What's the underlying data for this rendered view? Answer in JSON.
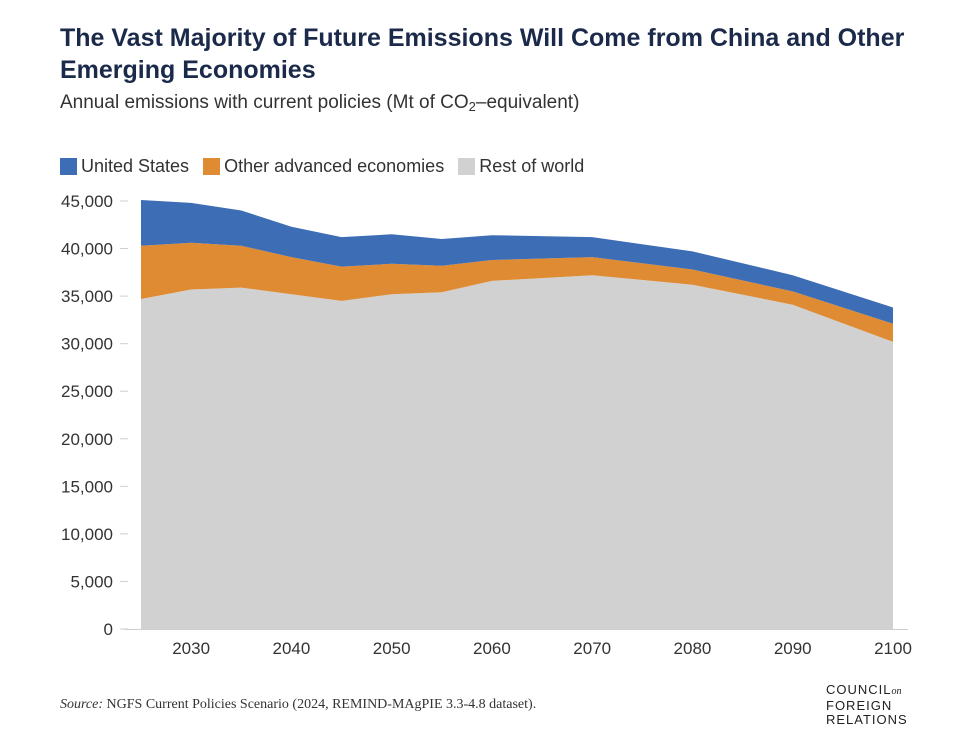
{
  "header": {
    "title": "The Vast Majority of Future Emissions Will Come from China and Other Emerging Economies",
    "subtitle_prefix": "Annual emissions with current policies (Mt of CO",
    "subtitle_sub": "2",
    "subtitle_suffix": "–equivalent)"
  },
  "colors": {
    "united_states": "#3c6db5",
    "other_advanced": "#de8b33",
    "rest_of_world": "#d1d1d1"
  },
  "chart_data": {
    "type": "area",
    "stacked": true,
    "title": "The Vast Majority of Future Emissions Will Come from China and Other Emerging Economies",
    "ylabel": "Annual emissions with current policies (Mt of CO2-equivalent)",
    "xlabel": "",
    "x": [
      2025,
      2030,
      2035,
      2040,
      2045,
      2050,
      2055,
      2060,
      2070,
      2080,
      2090,
      2100
    ],
    "series": [
      {
        "name": "Rest of world",
        "color": "#d1d1d1",
        "values": [
          34700,
          35700,
          35900,
          35200,
          34500,
          35200,
          35400,
          36600,
          37200,
          36200,
          34100,
          30200
        ]
      },
      {
        "name": "Other advanced economies",
        "color": "#de8b33",
        "values": [
          5600,
          4900,
          4400,
          3900,
          3600,
          3200,
          2800,
          2200,
          1900,
          1600,
          1400,
          1900
        ]
      },
      {
        "name": "United States",
        "color": "#3c6db5",
        "values": [
          4800,
          4200,
          3700,
          3200,
          3100,
          3100,
          2800,
          2600,
          2100,
          1900,
          1700,
          1700
        ]
      }
    ],
    "legend_order": [
      "United States",
      "Other advanced economies",
      "Rest of world"
    ],
    "xticks": [
      2030,
      2040,
      2050,
      2060,
      2070,
      2080,
      2090,
      2100
    ],
    "xtick_labels": [
      "2030",
      "2040",
      "2050",
      "2060",
      "2070",
      "2080",
      "2090",
      "2100"
    ],
    "yticks": [
      0,
      5000,
      10000,
      15000,
      20000,
      25000,
      30000,
      35000,
      40000,
      45000
    ],
    "ytick_labels": [
      "0",
      "5,000",
      "10,000",
      "15,000",
      "20,000",
      "25,000",
      "30,000",
      "35,000",
      "40,000",
      "45,000"
    ],
    "xlim": [
      2025,
      2100
    ],
    "ylim": [
      0,
      45000
    ],
    "grid": false,
    "legend_position": "top-left"
  },
  "footer": {
    "source_label": "Source:",
    "source_text": "NGFS Current Policies Scenario (2024, REMIND-MAgPIE 3.3-4.8 dataset).",
    "logo_line1": "COUNCIL",
    "logo_on": "on",
    "logo_line2": "FOREIGN",
    "logo_line3": "RELATIONS"
  }
}
